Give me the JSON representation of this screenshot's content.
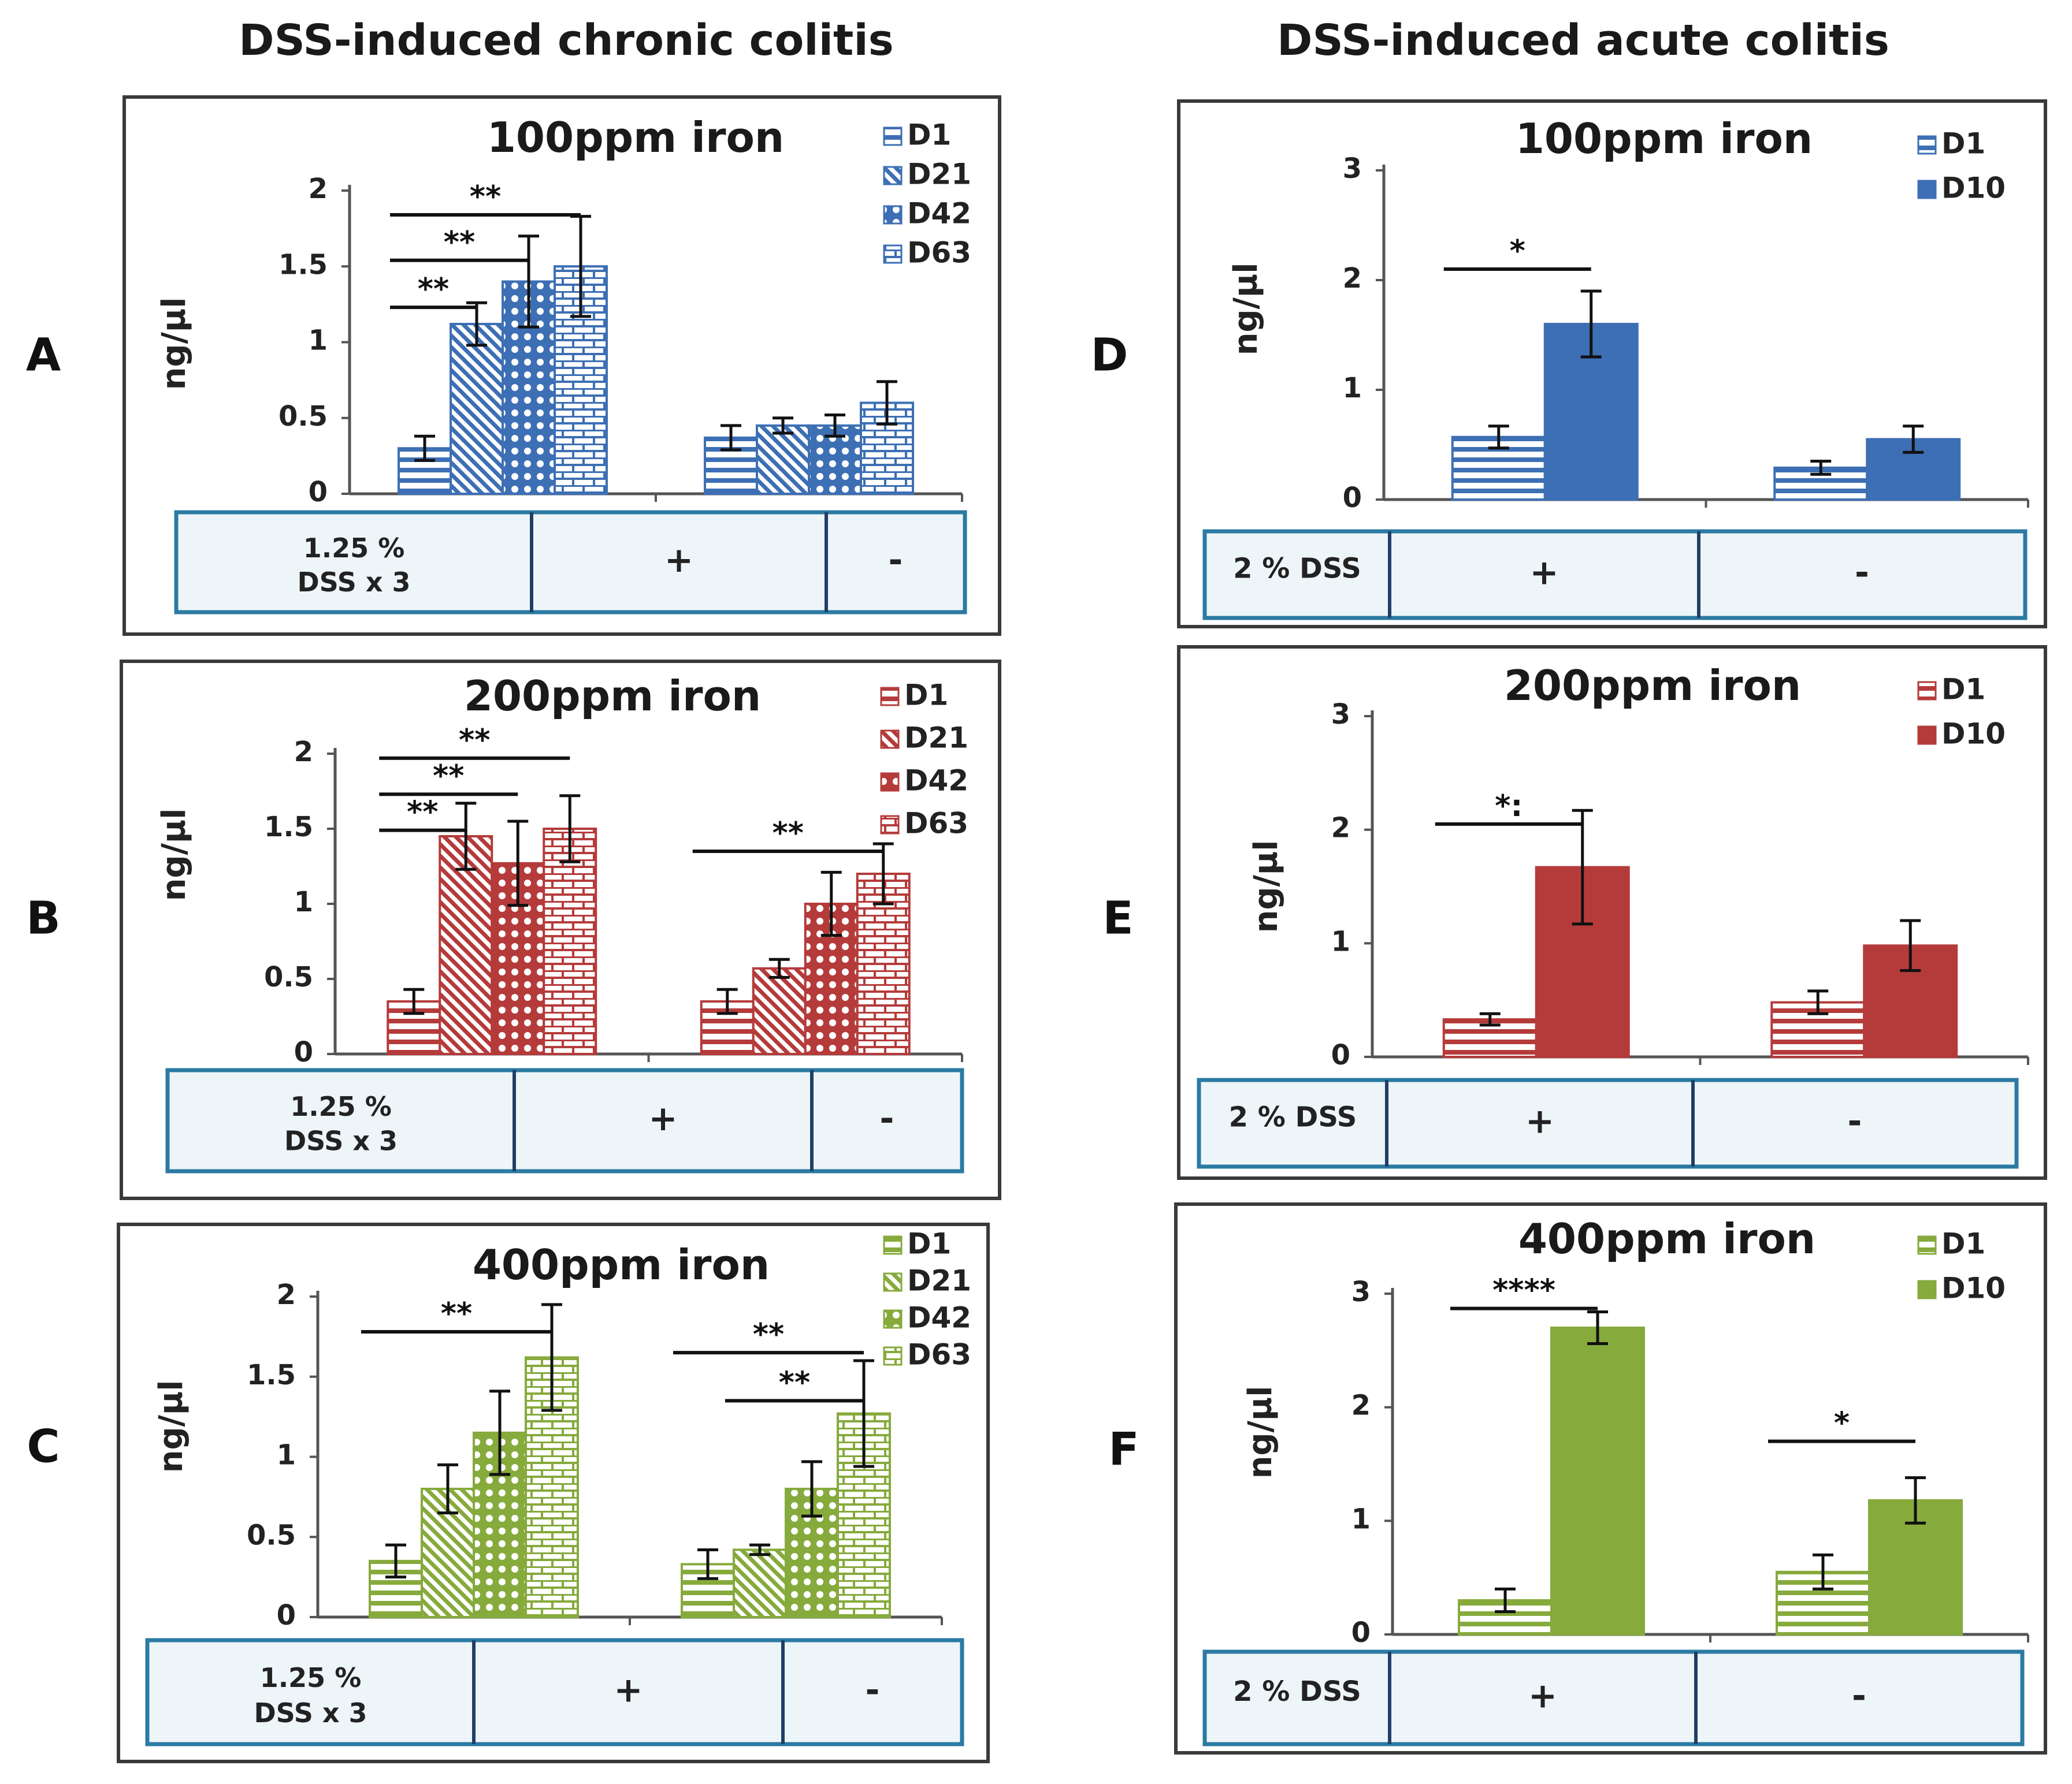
{
  "headings": {
    "chronic": "DSS-induced chronic colitis",
    "acute": "DSS-induced acute colitis"
  },
  "colors": {
    "blue": "#3d6fb4",
    "red": "#b53b3b",
    "green": "#86aa3c",
    "table_border": "#2b7aa3",
    "table_fill": "#eef5f9"
  },
  "chart_data": [
    {
      "panel": "A",
      "type": "bar",
      "title": "100ppm iron",
      "ylabel": "ng/µl",
      "ylim": [
        0,
        2
      ],
      "yticks": [
        "0",
        "0.5",
        "1",
        "1.5",
        "2"
      ],
      "color": "blue",
      "legend_position": "top-right",
      "table_label": [
        "1.25 %",
        "DSS  x 3"
      ],
      "categories": [
        "+",
        "-"
      ],
      "series": [
        {
          "name": "D1",
          "values": [
            0.3,
            0.37
          ],
          "errors": [
            0.08,
            0.08
          ]
        },
        {
          "name": "D21",
          "values": [
            1.12,
            0.45
          ],
          "errors": [
            0.14,
            0.05
          ]
        },
        {
          "name": "D42",
          "values": [
            1.4,
            0.45
          ],
          "errors": [
            0.3,
            0.07
          ]
        },
        {
          "name": "D63",
          "values": [
            1.5,
            0.6
          ],
          "errors": [
            0.33,
            0.14
          ]
        }
      ],
      "significance": [
        {
          "label": "**",
          "from": [
            0,
            0
          ],
          "to": [
            0,
            1
          ],
          "y": 1.23
        },
        {
          "label": "**",
          "from": [
            0,
            0
          ],
          "to": [
            0,
            2
          ],
          "y": 1.54
        },
        {
          "label": "**",
          "from": [
            0,
            0
          ],
          "to": [
            0,
            3
          ],
          "y": 1.84
        }
      ]
    },
    {
      "panel": "B",
      "type": "bar",
      "title": "200ppm iron",
      "ylabel": "ng/µl",
      "ylim": [
        0,
        2
      ],
      "yticks": [
        "0",
        "0.5",
        "1",
        "1.5",
        "2"
      ],
      "color": "red",
      "legend_position": "top-right",
      "table_label": [
        "1.25 %",
        "DSS  x 3"
      ],
      "categories": [
        "+",
        "-"
      ],
      "series": [
        {
          "name": "D1",
          "values": [
            0.35,
            0.35
          ],
          "errors": [
            0.08,
            0.08
          ]
        },
        {
          "name": "D21",
          "values": [
            1.45,
            0.57
          ],
          "errors": [
            0.22,
            0.06
          ]
        },
        {
          "name": "D42",
          "values": [
            1.27,
            1.0
          ],
          "errors": [
            0.28,
            0.21
          ]
        },
        {
          "name": "D63",
          "values": [
            1.5,
            1.2
          ],
          "errors": [
            0.22,
            0.2
          ]
        }
      ],
      "significance": [
        {
          "label": "**",
          "from": [
            0,
            0
          ],
          "to": [
            0,
            1
          ],
          "y": 1.49
        },
        {
          "label": "**",
          "from": [
            0,
            0
          ],
          "to": [
            0,
            2
          ],
          "y": 1.73
        },
        {
          "label": "**",
          "from": [
            0,
            0
          ],
          "to": [
            0,
            3
          ],
          "y": 1.97
        },
        {
          "label": "**",
          "from": [
            1,
            0
          ],
          "to": [
            1,
            3
          ],
          "y": 1.35
        }
      ]
    },
    {
      "panel": "C",
      "type": "bar",
      "title": "400ppm iron",
      "ylabel": "ng/µl",
      "ylim": [
        0,
        2
      ],
      "yticks": [
        "0",
        "0.5",
        "1",
        "1.5",
        "2"
      ],
      "color": "green",
      "legend_position": "top-right",
      "table_label": [
        "1.25 %",
        "DSS  x 3"
      ],
      "categories": [
        "+",
        "-"
      ],
      "series": [
        {
          "name": "D1",
          "values": [
            0.35,
            0.33
          ],
          "errors": [
            0.1,
            0.09
          ]
        },
        {
          "name": "D21",
          "values": [
            0.8,
            0.42
          ],
          "errors": [
            0.15,
            0.03
          ]
        },
        {
          "name": "D42",
          "values": [
            1.15,
            0.8
          ],
          "errors": [
            0.26,
            0.17
          ]
        },
        {
          "name": "D63",
          "values": [
            1.62,
            1.27
          ],
          "errors": [
            0.33,
            0.33
          ]
        }
      ],
      "significance": [
        {
          "label": "**",
          "from": [
            0,
            0
          ],
          "to": [
            0,
            3
          ],
          "y": 1.78
        },
        {
          "label": "**",
          "from": [
            1,
            0
          ],
          "to": [
            1,
            3
          ],
          "y": 1.65
        },
        {
          "label": "**",
          "from": [
            1,
            1
          ],
          "to": [
            1,
            3
          ],
          "y": 1.35
        }
      ]
    },
    {
      "panel": "D",
      "type": "bar",
      "title": "100ppm iron",
      "ylabel": "ng/µl",
      "ylim": [
        0,
        3
      ],
      "yticks": [
        "0",
        "1",
        "2",
        "3"
      ],
      "color": "blue",
      "legend_position": "top-right",
      "table_label": [
        "2 % DSS"
      ],
      "categories": [
        "+",
        "-"
      ],
      "series": [
        {
          "name": "D1",
          "values": [
            0.57,
            0.29
          ],
          "errors": [
            0.1,
            0.06
          ]
        },
        {
          "name": "D10",
          "values": [
            1.6,
            0.55
          ],
          "errors": [
            0.3,
            0.12
          ]
        }
      ],
      "significance": [
        {
          "label": "*",
          "from": [
            0,
            0
          ],
          "to": [
            0,
            1
          ],
          "y": 2.1
        }
      ]
    },
    {
      "panel": "E",
      "type": "bar",
      "title": "200ppm iron",
      "ylabel": "ng/µl",
      "ylim": [
        0,
        3
      ],
      "yticks": [
        "0",
        "1",
        "2",
        "3"
      ],
      "color": "red",
      "legend_position": "top-right",
      "table_label": [
        "2 % DSS"
      ],
      "categories": [
        "+",
        "-"
      ],
      "series": [
        {
          "name": "D1",
          "values": [
            0.33,
            0.48
          ],
          "errors": [
            0.05,
            0.1
          ]
        },
        {
          "name": "D10",
          "values": [
            1.67,
            0.98
          ],
          "errors": [
            0.5,
            0.22
          ]
        }
      ],
      "significance": [
        {
          "label": "*:",
          "from": [
            0,
            0
          ],
          "to": [
            0,
            1
          ],
          "y": 2.05
        }
      ]
    },
    {
      "panel": "F",
      "type": "bar",
      "title": "400ppm iron",
      "ylabel": "ng/µl",
      "ylim": [
        0,
        3
      ],
      "yticks": [
        "0",
        "1",
        "2",
        "3"
      ],
      "color": "green",
      "legend_position": "top-right",
      "table_label": [
        "2 % DSS"
      ],
      "categories": [
        "+",
        "-"
      ],
      "series": [
        {
          "name": "D1",
          "values": [
            0.3,
            0.55
          ],
          "errors": [
            0.1,
            0.15
          ]
        },
        {
          "name": "D10",
          "values": [
            2.7,
            1.18
          ],
          "errors": [
            0.14,
            0.2
          ]
        }
      ],
      "significance": [
        {
          "label": "****",
          "from": [
            0,
            0
          ],
          "to": [
            0,
            1
          ],
          "y": 2.87
        },
        {
          "label": "*",
          "from": [
            1,
            0
          ],
          "to": [
            1,
            1
          ],
          "y": 1.7
        }
      ]
    }
  ]
}
